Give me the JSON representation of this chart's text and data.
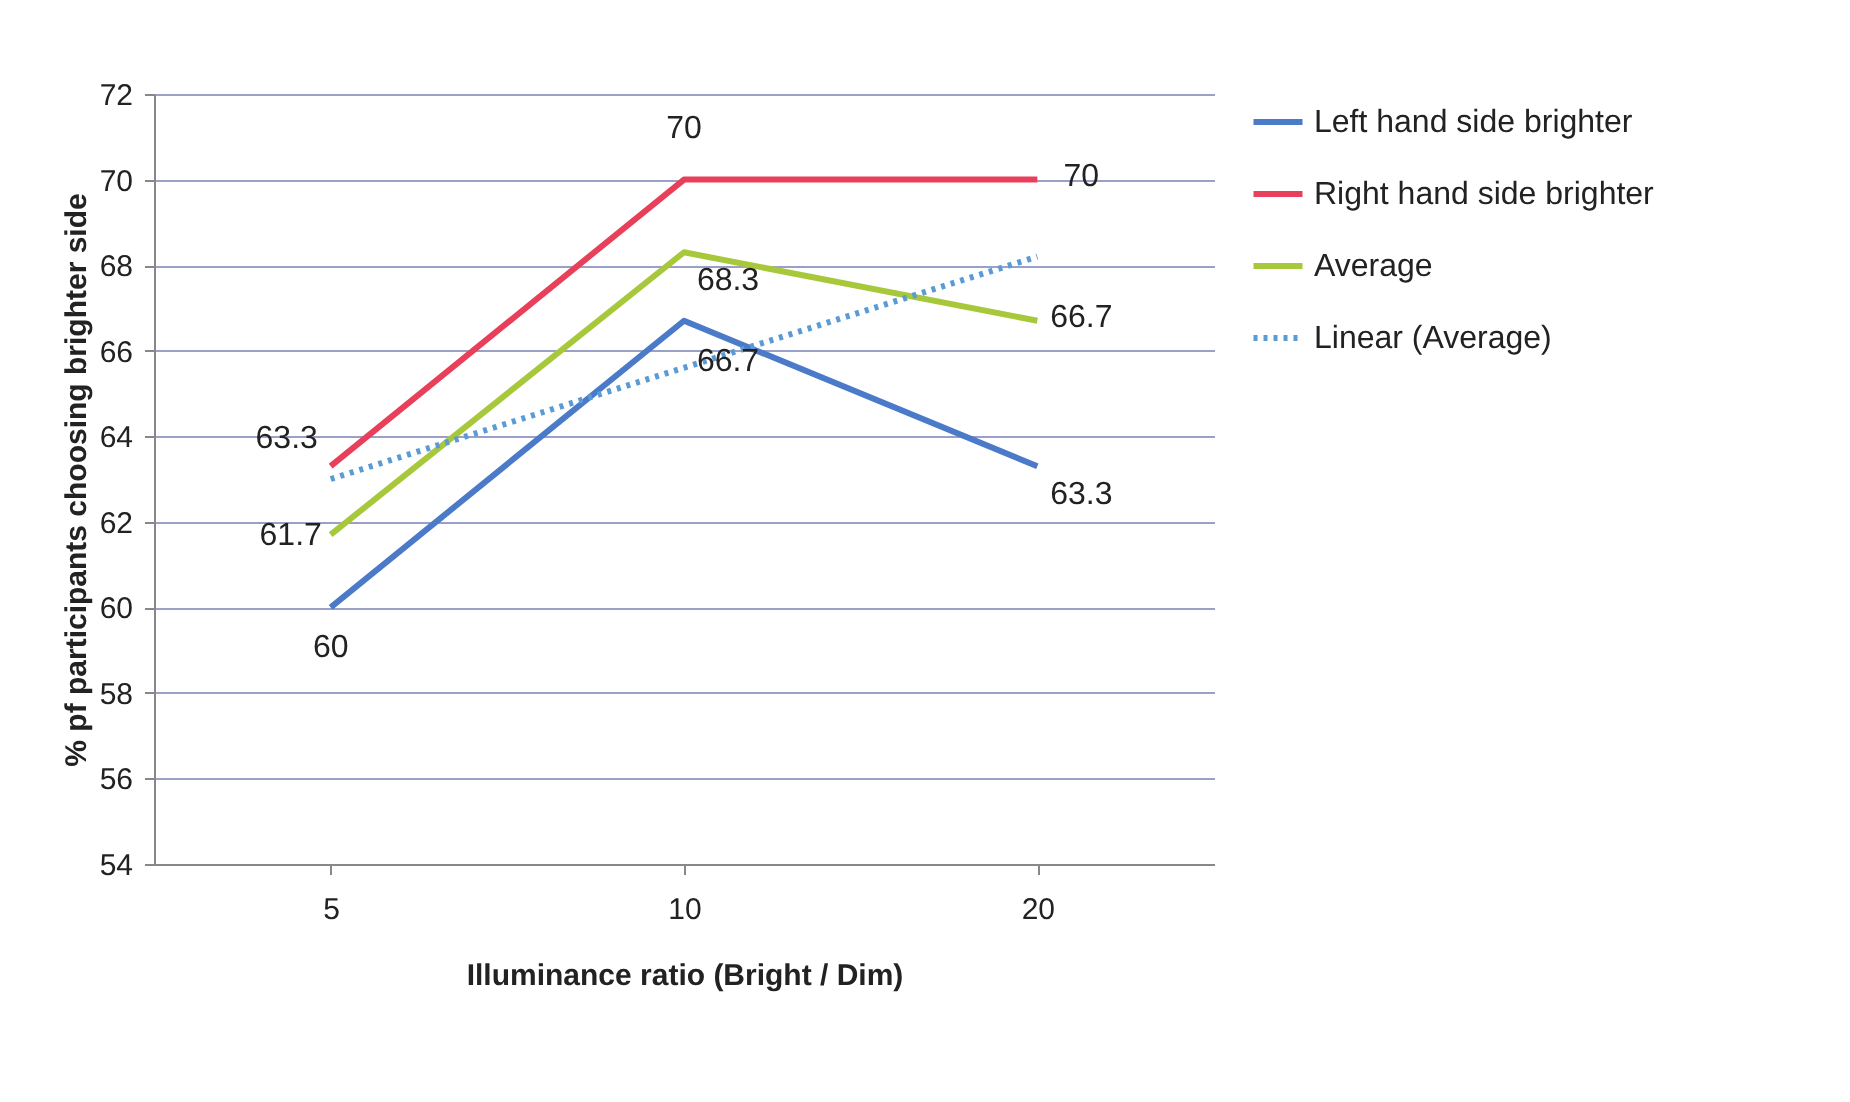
{
  "chart_data": {
    "type": "line",
    "xlabel": "Illuminance ratio (Bright / Dim)",
    "ylabel": "% pf participants choosing brighter side",
    "categories": [
      "5",
      "10",
      "20"
    ],
    "ylim": [
      54,
      72
    ],
    "yticks": [
      54,
      56,
      58,
      60,
      62,
      64,
      66,
      68,
      70,
      72
    ],
    "grid": "y",
    "legend": "right",
    "marker": "none",
    "series": [
      {
        "name": "Left hand side brighter",
        "color": "#4a7ac8",
        "values": [
          60,
          66.7,
          63.3
        ],
        "value_labels": [
          "60",
          "66.7",
          "63.3"
        ]
      },
      {
        "name": "Right hand side brighter",
        "color": "#e8405a",
        "values": [
          63.3,
          70,
          70
        ],
        "value_labels": [
          "63.3",
          "70",
          "70"
        ]
      },
      {
        "name": "Average",
        "color": "#a8c83c",
        "values": [
          61.7,
          68.3,
          66.7
        ],
        "value_labels": [
          "61.7",
          "68.3",
          "66.7"
        ]
      },
      {
        "name": "Linear (Average)",
        "type": "line",
        "line_style": "dotted",
        "color": "#5b9bd5",
        "x": [
          "5",
          "10",
          "20"
        ],
        "values": [
          63.0,
          65.6,
          68.2
        ]
      }
    ]
  }
}
